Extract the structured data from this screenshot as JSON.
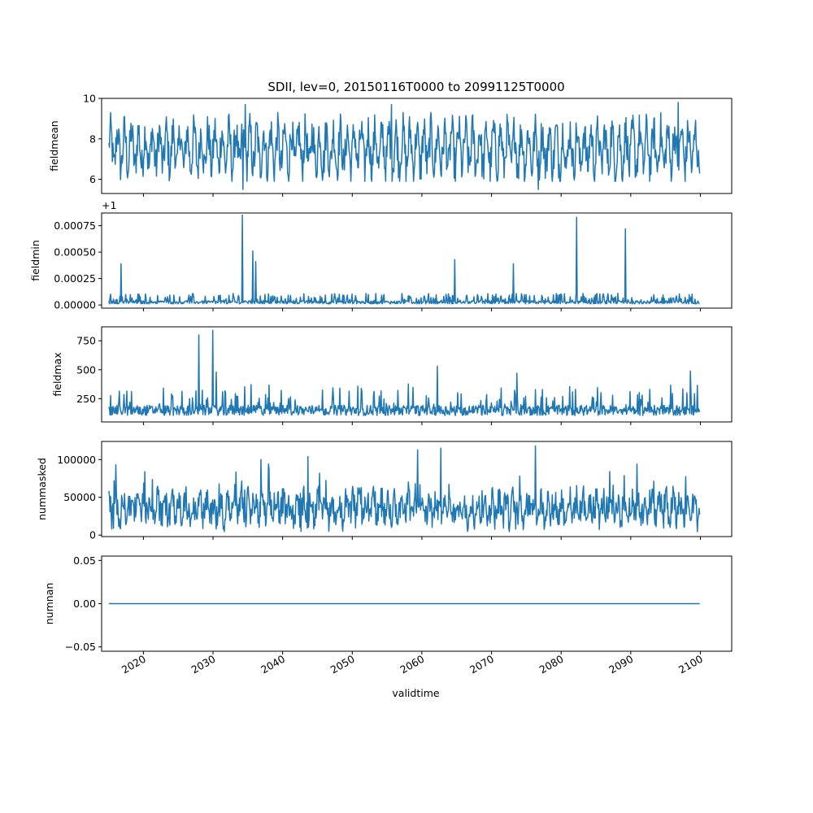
{
  "title": "SDII, lev=0, 20150116T0000 to 20991125T0000",
  "line_color": "#1f77b4",
  "chart_data": [
    {
      "type": "line",
      "ylabel": "fieldmean",
      "x_range": [
        "2015-01-16",
        "2099-11-25"
      ],
      "ylim": [
        5.3,
        10.0
      ],
      "yticks": [
        6,
        8,
        10
      ],
      "ytick_labels": [
        "6",
        "8",
        "10"
      ],
      "offset_text": "",
      "x_tick_labels_visible": false,
      "summary": {
        "min": 5.5,
        "max": 9.8,
        "typical_low": 6.2,
        "typical_high": 9.0,
        "seasonal_mean": 7.5
      },
      "highlights": [
        {
          "year": 2034.6,
          "value": 9.7
        },
        {
          "year": 2034.3,
          "value": 5.5
        },
        {
          "year": 2055.6,
          "value": 9.7
        },
        {
          "year": 2076.7,
          "value": 5.5
        },
        {
          "year": 2096.8,
          "value": 9.8
        }
      ]
    },
    {
      "type": "line",
      "ylabel": "fieldmin",
      "x_range": [
        "2015-01-16",
        "2099-11-25"
      ],
      "ylim": [
        -3e-05,
        0.00087
      ],
      "yticks": [
        0.0,
        0.00025,
        0.0005,
        0.00075
      ],
      "ytick_labels": [
        "0.00000",
        "0.00025",
        "0.00050",
        "0.00075"
      ],
      "offset_text": "+1",
      "x_tick_labels_visible": false,
      "summary": {
        "baseline": 1e-05,
        "typical_high": 0.0001
      },
      "highlights": [
        {
          "year": 2016.8,
          "value": 0.00039
        },
        {
          "year": 2034.2,
          "value": 0.00085
        },
        {
          "year": 2035.7,
          "value": 0.00051
        },
        {
          "year": 2036.1,
          "value": 0.00041
        },
        {
          "year": 2064.7,
          "value": 0.00043
        },
        {
          "year": 2073.1,
          "value": 0.00039
        },
        {
          "year": 2082.2,
          "value": 0.00083
        },
        {
          "year": 2089.2,
          "value": 0.00072
        }
      ]
    },
    {
      "type": "line",
      "ylabel": "fieldmax",
      "x_range": [
        "2015-01-16",
        "2099-11-25"
      ],
      "ylim": [
        50,
        870
      ],
      "yticks": [
        250,
        500,
        750
      ],
      "ytick_labels": [
        "250",
        "500",
        "750"
      ],
      "offset_text": "",
      "x_tick_labels_visible": false,
      "summary": {
        "baseline": 150,
        "typical_high": 300,
        "min": 70
      },
      "highlights": [
        {
          "year": 2028.0,
          "value": 800
        },
        {
          "year": 2030.0,
          "value": 840
        },
        {
          "year": 2030.5,
          "value": 480
        },
        {
          "year": 2062.2,
          "value": 530
        },
        {
          "year": 2073.6,
          "value": 470
        },
        {
          "year": 2098.6,
          "value": 490
        }
      ]
    },
    {
      "type": "line",
      "ylabel": "nummasked",
      "x_range": [
        "2015-01-16",
        "2099-11-25"
      ],
      "ylim": [
        -2000,
        124000
      ],
      "yticks": [
        0,
        50000,
        100000
      ],
      "ytick_labels": [
        "0",
        "50000",
        "100000"
      ],
      "offset_text": "",
      "x_tick_labels_visible": false,
      "summary": {
        "baseline": 35000,
        "typical_low": 10000,
        "typical_high": 70000
      },
      "highlights": [
        {
          "year": 2016.0,
          "value": 93000
        },
        {
          "year": 2036.9,
          "value": 100000
        },
        {
          "year": 2043.6,
          "value": 104000
        },
        {
          "year": 2059.4,
          "value": 113000
        },
        {
          "year": 2062.7,
          "value": 115000
        },
        {
          "year": 2076.3,
          "value": 118000
        },
        {
          "year": 2090.9,
          "value": 94000
        }
      ]
    },
    {
      "type": "line",
      "ylabel": "numnan",
      "xlabel": "validtime",
      "x_range": [
        "2015-01-16",
        "2099-11-25"
      ],
      "ylim": [
        -0.055,
        0.055
      ],
      "yticks": [
        -0.05,
        0.0,
        0.05
      ],
      "ytick_labels": [
        "−0.05",
        "0.00",
        "0.05"
      ],
      "offset_text": "",
      "x_tick_labels_visible": true,
      "constant_value": 0
    }
  ],
  "x_axis": {
    "xlim": [
      2014.0,
      2104.5
    ],
    "ticks": [
      2020,
      2030,
      2040,
      2050,
      2060,
      2070,
      2080,
      2090,
      2100
    ],
    "tick_labels": [
      "2020",
      "2030",
      "2040",
      "2050",
      "2060",
      "2070",
      "2080",
      "2090",
      "2100"
    ]
  }
}
